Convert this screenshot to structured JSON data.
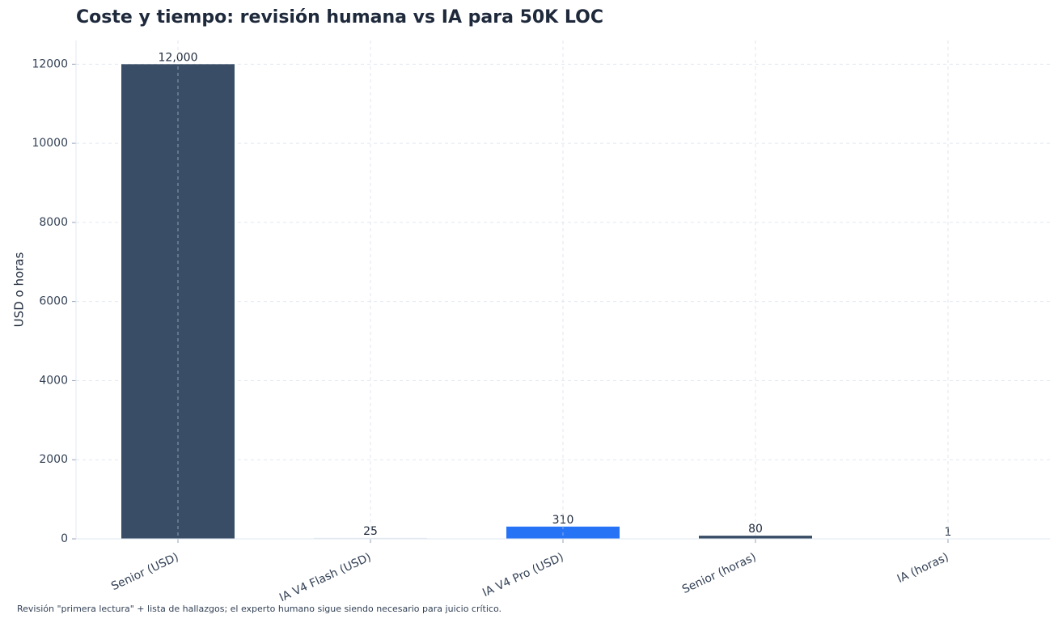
{
  "chart_data": {
    "type": "bar",
    "title": "Coste y tiempo: revisión humana vs IA para 50K LOC",
    "y_label": "USD o horas",
    "footnote": "Revisión \"primera lectura\" + lista de hallazgos; el experto humano sigue siendo necesario para juicio crítico.",
    "categories": [
      "Senior (USD)",
      "IA V4 Flash (USD)",
      "IA V4 Pro (USD)",
      "Senior (horas)",
      "IA (horas)"
    ],
    "values": [
      12000,
      25,
      310,
      80,
      1
    ],
    "value_labels": [
      "12,000",
      "25",
      "310",
      "80",
      "1"
    ],
    "colors": [
      "#394e66",
      "#e2e8f0",
      "#2673f5",
      "#394e66",
      "#e2e8f0"
    ],
    "ylim": [
      0,
      12600
    ],
    "yticks": [
      0,
      2000,
      4000,
      6000,
      8000,
      10000,
      12000
    ],
    "grid": true
  }
}
